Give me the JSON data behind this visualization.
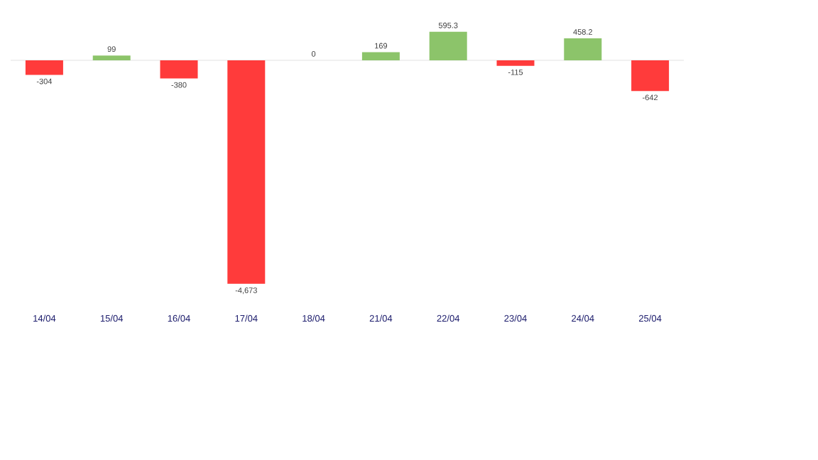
{
  "chart_data": {
    "type": "bar",
    "categories": [
      "14/04",
      "15/04",
      "16/04",
      "17/04",
      "18/04",
      "21/04",
      "22/04",
      "23/04",
      "24/04",
      "25/04"
    ],
    "values": [
      -304,
      99,
      -380,
      -4673,
      0,
      169,
      595.3,
      -115,
      458.2,
      -642
    ],
    "colors": [
      "#ff3b3b",
      "#8cc46a",
      "#ff3b3b",
      "#ff3b3b",
      "#ff3b3b",
      "#8cc46a",
      "#8cc46a",
      "#ff3b3b",
      "#8cc46a",
      "#ff3b3b"
    ],
    "value_labels": [
      "-304",
      "99",
      "-380",
      "-4,673",
      "0",
      "169",
      "595.3",
      "-115",
      "458.2",
      "-642"
    ]
  }
}
